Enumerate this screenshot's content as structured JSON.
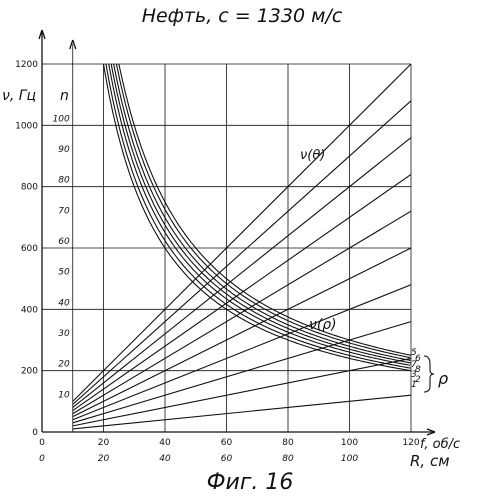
{
  "chart_data": {
    "type": "line",
    "title": "Нефть,  c = 1330 м/с",
    "caption": "Фиг. 16",
    "ylabel": "ν, Гц",
    "xlabel_f": "f, об/с",
    "xlabel_R": "R, см",
    "n_label": "n",
    "rho_label": "ρ",
    "nu_theta_label": "ν(θ)",
    "nu_rho_label": "ν(ρ)",
    "grid": true,
    "ylim": [
      0,
      1200
    ],
    "f_lim": [
      0,
      120
    ],
    "R_lim": [
      0,
      120
    ],
    "y_ticks": [
      "0",
      "200",
      "400",
      "600",
      "800",
      "1000",
      "1200"
    ],
    "f_ticks": [
      "0",
      "20",
      "40",
      "60",
      "80",
      "100",
      "120"
    ],
    "R_ticks": [
      "0",
      "20",
      "40",
      "60",
      "80",
      "100"
    ],
    "n_ticks": [
      "10",
      "20",
      "30",
      "40",
      "50",
      "60",
      "70",
      "80",
      "90",
      "100"
    ],
    "rho_labels": [
      "5",
      "6",
      "7",
      "8",
      "3",
      "2",
      "1"
    ],
    "radial_lines": {
      "description": "ν = n·f for n = 1…10",
      "n": [
        1,
        2,
        3,
        4,
        5,
        6,
        7,
        8,
        9,
        10
      ]
    },
    "curves": {
      "description": "ν(ρ) family, seven curves labelled 1…8 at the right end",
      "R": [
        20,
        40,
        60,
        80,
        100,
        120
      ],
      "series": [
        {
          "values": [
            1200,
            600,
            400,
            300,
            240,
            200
          ]
        },
        {
          "values": [
            1200,
            625,
            417,
            313,
            250,
            208
          ]
        },
        {
          "values": [
            1200,
            650,
            433,
            325,
            260,
            217
          ]
        },
        {
          "values": [
            1200,
            675,
            450,
            338,
            270,
            225
          ]
        },
        {
          "values": [
            1200,
            700,
            467,
            350,
            280,
            233
          ]
        },
        {
          "values": [
            1200,
            725,
            483,
            363,
            290,
            242
          ]
        },
        {
          "values": [
            1200,
            750,
            500,
            375,
            300,
            250
          ]
        }
      ]
    }
  }
}
